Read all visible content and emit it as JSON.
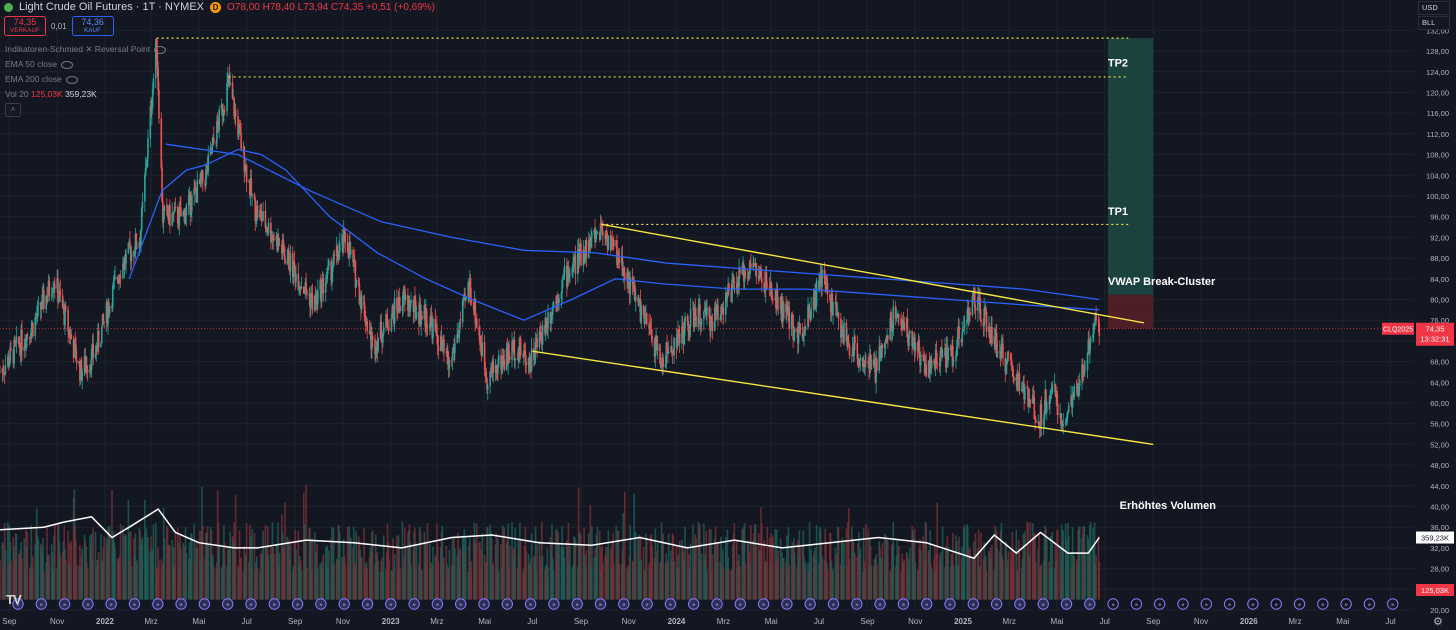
{
  "header": {
    "title": "Light Crude Oil Futures · 1T · NYMEX",
    "badge": "D",
    "ohlc": {
      "o": "O78,00",
      "h": "H78,40",
      "l": "L73,94",
      "c": "C74,35",
      "chg": "+0,51 (+0,69%)"
    }
  },
  "trade": {
    "sell_price": "74,35",
    "sell_label": "VERKAUF",
    "spread": "0,01",
    "buy_price": "74,36",
    "buy_label": "KAUF"
  },
  "indicators": {
    "reversal": "Indikatoren-Schmied ✕ Reversal Point",
    "ema50": "EMA 50 close",
    "ema200": "EMA 200 close",
    "vol_label": "Vol 20",
    "vol_val1": "125,03K",
    "vol_val2": "359,23K"
  },
  "currency": {
    "ccy": "USD",
    "unit": "BLL"
  },
  "colors": {
    "background": "#131722",
    "up": "#26a69a",
    "down": "#ef5350",
    "ema": "#2962ff",
    "trend": "#f5e642",
    "target_zone": "#1f4a44",
    "stop_zone": "#5a1e26",
    "volume_ma": "#ffffff",
    "last_price": "#f23645"
  },
  "icons": {
    "logo": "tradingview-logo-icon",
    "settings": "gear-icon",
    "event_marker": "dividend-event-icon"
  },
  "chart_data": {
    "type": "candlestick",
    "price_axis": {
      "ylim": [
        20,
        134
      ],
      "ticks": [
        "132,00",
        "128,00",
        "124,00",
        "120,00",
        "116,00",
        "112,00",
        "108,00",
        "104,00",
        "100,00",
        "96,00",
        "92,00",
        "88,00",
        "84,00",
        "80,00",
        "76,00",
        "72,00",
        "68,00",
        "64,00",
        "60,00",
        "56,00",
        "52,00",
        "48,00",
        "44,00",
        "40,00",
        "36,00",
        "32,00",
        "28,00",
        "24,00",
        "20,00"
      ]
    },
    "time_axis": {
      "range": [
        "2021-08-20",
        "2026-07-31"
      ],
      "labels": [
        {
          "t": "2021-09-01",
          "label": "Sep"
        },
        {
          "t": "2021-11-01",
          "label": "Nov"
        },
        {
          "t": "2022-01-01",
          "label": "2022",
          "bold": true
        },
        {
          "t": "2022-03-01",
          "label": "Mrz"
        },
        {
          "t": "2022-05-01",
          "label": "Mai"
        },
        {
          "t": "2022-07-01",
          "label": "Jul"
        },
        {
          "t": "2022-09-01",
          "label": "Sep"
        },
        {
          "t": "2022-11-01",
          "label": "Nov"
        },
        {
          "t": "2023-01-01",
          "label": "2023",
          "bold": true
        },
        {
          "t": "2023-03-01",
          "label": "Mrz"
        },
        {
          "t": "2023-05-01",
          "label": "Mai"
        },
        {
          "t": "2023-07-01",
          "label": "Jul"
        },
        {
          "t": "2023-09-01",
          "label": "Sep"
        },
        {
          "t": "2023-11-01",
          "label": "Nov"
        },
        {
          "t": "2024-01-01",
          "label": "2024",
          "bold": true
        },
        {
          "t": "2024-03-01",
          "label": "Mrz"
        },
        {
          "t": "2024-05-01",
          "label": "Mai"
        },
        {
          "t": "2024-07-01",
          "label": "Jul"
        },
        {
          "t": "2024-09-01",
          "label": "Sep"
        },
        {
          "t": "2024-11-01",
          "label": "Nov"
        },
        {
          "t": "2025-01-01",
          "label": "2025",
          "bold": true
        },
        {
          "t": "2025-03-01",
          "label": "Mrz"
        },
        {
          "t": "2025-05-01",
          "label": "Mai"
        },
        {
          "t": "2025-07-01",
          "label": "Jul"
        },
        {
          "t": "2025-09-01",
          "label": "Sep"
        },
        {
          "t": "2025-11-01",
          "label": "Nov"
        },
        {
          "t": "2026-01-01",
          "label": "2026",
          "bold": true
        },
        {
          "t": "2026-03-01",
          "label": "Mrz"
        },
        {
          "t": "2026-05-01",
          "label": "Mai"
        },
        {
          "t": "2026-07-01",
          "label": "Jul"
        }
      ]
    },
    "price_path": [
      [
        "2021-08-20",
        66
      ],
      [
        "2021-10-01",
        75
      ],
      [
        "2021-10-28",
        84
      ],
      [
        "2021-12-01",
        66
      ],
      [
        "2021-12-20",
        70
      ],
      [
        "2022-01-20",
        86
      ],
      [
        "2022-02-15",
        92
      ],
      [
        "2022-03-08",
        130
      ],
      [
        "2022-03-16",
        96
      ],
      [
        "2022-04-10",
        96
      ],
      [
        "2022-05-10",
        104
      ],
      [
        "2022-06-08",
        122
      ],
      [
        "2022-07-10",
        98
      ],
      [
        "2022-08-10",
        91
      ],
      [
        "2022-09-25",
        79
      ],
      [
        "2022-11-05",
        92
      ],
      [
        "2022-12-09",
        71
      ],
      [
        "2023-01-15",
        80
      ],
      [
        "2023-02-20",
        76
      ],
      [
        "2023-03-17",
        67
      ],
      [
        "2023-04-12",
        83
      ],
      [
        "2023-05-04",
        65
      ],
      [
        "2023-06-10",
        71
      ],
      [
        "2023-06-28",
        68
      ],
      [
        "2023-08-10",
        84
      ],
      [
        "2023-09-27",
        94
      ],
      [
        "2023-10-20",
        88
      ],
      [
        "2023-12-13",
        68
      ],
      [
        "2024-01-25",
        77
      ],
      [
        "2024-02-15",
        76
      ],
      [
        "2024-04-05",
        87
      ],
      [
        "2024-05-20",
        77
      ],
      [
        "2024-06-05",
        73
      ],
      [
        "2024-07-05",
        84
      ],
      [
        "2024-08-05",
        72
      ],
      [
        "2024-09-10",
        66
      ],
      [
        "2024-10-07",
        78
      ],
      [
        "2024-11-15",
        67
      ],
      [
        "2024-12-20",
        70
      ],
      [
        "2025-01-15",
        80
      ],
      [
        "2025-02-10",
        72
      ],
      [
        "2025-03-05",
        66
      ],
      [
        "2025-04-09",
        57
      ],
      [
        "2025-04-25",
        64
      ],
      [
        "2025-05-05",
        56
      ],
      [
        "2025-05-28",
        62
      ],
      [
        "2025-06-13",
        73
      ],
      [
        "2025-06-20",
        78
      ],
      [
        "2025-06-24",
        74.35
      ]
    ],
    "last_price": 74.35,
    "ema_50": [
      [
        "2022-02-01",
        84
      ],
      [
        "2022-03-15",
        101
      ],
      [
        "2022-04-15",
        105
      ],
      [
        "2022-05-10",
        106
      ],
      [
        "2022-06-20",
        109
      ],
      [
        "2022-07-20",
        108
      ],
      [
        "2022-08-20",
        105
      ],
      [
        "2022-10-15",
        96
      ],
      [
        "2022-12-15",
        89
      ],
      [
        "2023-02-15",
        84
      ],
      [
        "2023-04-15",
        80
      ],
      [
        "2023-06-20",
        76
      ],
      [
        "2023-08-20",
        80
      ],
      [
        "2023-10-15",
        84
      ],
      [
        "2023-12-15",
        83
      ],
      [
        "2024-03-15",
        82
      ],
      [
        "2024-06-15",
        82
      ],
      [
        "2024-09-15",
        81
      ],
      [
        "2024-12-15",
        80
      ],
      [
        "2025-03-15",
        79
      ],
      [
        "2025-06-24",
        78
      ]
    ],
    "ema_200": [
      [
        "2022-03-20",
        110
      ],
      [
        "2022-06-20",
        108
      ],
      [
        "2022-09-20",
        101
      ],
      [
        "2022-12-20",
        95
      ],
      [
        "2023-03-20",
        92
      ],
      [
        "2023-06-20",
        89.5
      ],
      [
        "2023-09-20",
        89
      ],
      [
        "2023-12-20",
        87
      ],
      [
        "2024-03-20",
        86
      ],
      [
        "2024-06-20",
        85
      ],
      [
        "2024-09-20",
        84
      ],
      [
        "2024-12-20",
        83
      ],
      [
        "2025-03-20",
        82
      ],
      [
        "2025-06-24",
        80
      ]
    ],
    "trendlines": [
      {
        "name": "upper",
        "from": [
          "2023-09-28",
          94.5
        ],
        "to": [
          "2025-08-20",
          75.5
        ]
      },
      {
        "name": "lower",
        "from": [
          "2023-07-01",
          70
        ],
        "to": [
          "2025-09-01",
          52
        ]
      }
    ],
    "levels": [
      {
        "label": "",
        "price": 130.5,
        "from": "2022-03-08",
        "to": "2025-07-31"
      },
      {
        "label": "TP2",
        "price": 123,
        "from": "2022-06-08",
        "to": "2025-07-31"
      },
      {
        "label": "TP1",
        "price": 94.5,
        "from": "2023-09-27",
        "to": "2025-07-31"
      }
    ],
    "position": {
      "entry": 74.35,
      "target": 130.5,
      "stop": 80.9,
      "from": "2025-07-05",
      "to": "2025-09-01"
    },
    "annotations": [
      {
        "text": "TP2",
        "t": "2025-07-05",
        "y": 125
      },
      {
        "text": "TP1",
        "t": "2025-07-05",
        "y": 96.3
      },
      {
        "text": "VWAP Break-Cluster",
        "t": "2025-07-05",
        "y": 82.8
      },
      {
        "text": "Erhöhtes Volumen",
        "t": "2025-07-20",
        "y": 39.5
      }
    ],
    "volume": {
      "ma_path": [
        [
          "2021-08-20",
          35.5
        ],
        [
          "2021-10-15",
          36
        ],
        [
          "2021-11-10",
          37
        ],
        [
          "2021-12-15",
          38
        ],
        [
          "2022-01-10",
          34
        ],
        [
          "2022-02-01",
          36
        ],
        [
          "2022-03-10",
          39.5
        ],
        [
          "2022-04-01",
          35
        ],
        [
          "2022-05-01",
          33
        ],
        [
          "2022-06-15",
          32
        ],
        [
          "2022-07-15",
          32
        ],
        [
          "2022-09-15",
          33.5
        ],
        [
          "2022-11-15",
          33
        ],
        [
          "2023-01-15",
          32
        ],
        [
          "2023-03-20",
          34
        ],
        [
          "2023-05-10",
          34.5
        ],
        [
          "2023-07-10",
          33
        ],
        [
          "2023-09-15",
          32.5
        ],
        [
          "2023-11-15",
          34
        ],
        [
          "2024-01-15",
          32
        ],
        [
          "2024-03-15",
          33.5
        ],
        [
          "2024-05-15",
          32
        ],
        [
          "2024-07-15",
          33
        ],
        [
          "2024-09-15",
          34
        ],
        [
          "2024-11-15",
          33
        ],
        [
          "2025-01-15",
          30
        ],
        [
          "2025-02-10",
          34.5
        ],
        [
          "2025-03-10",
          31
        ],
        [
          "2025-04-10",
          35
        ],
        [
          "2025-05-15",
          31
        ],
        [
          "2025-06-10",
          31
        ],
        [
          "2025-06-24",
          34
        ]
      ],
      "last_ma": "359,23K",
      "last_vol": "125,03K"
    },
    "last_tag": {
      "symbol": "CLQ2025",
      "price": "74,35",
      "countdown": "13:32:31"
    }
  }
}
